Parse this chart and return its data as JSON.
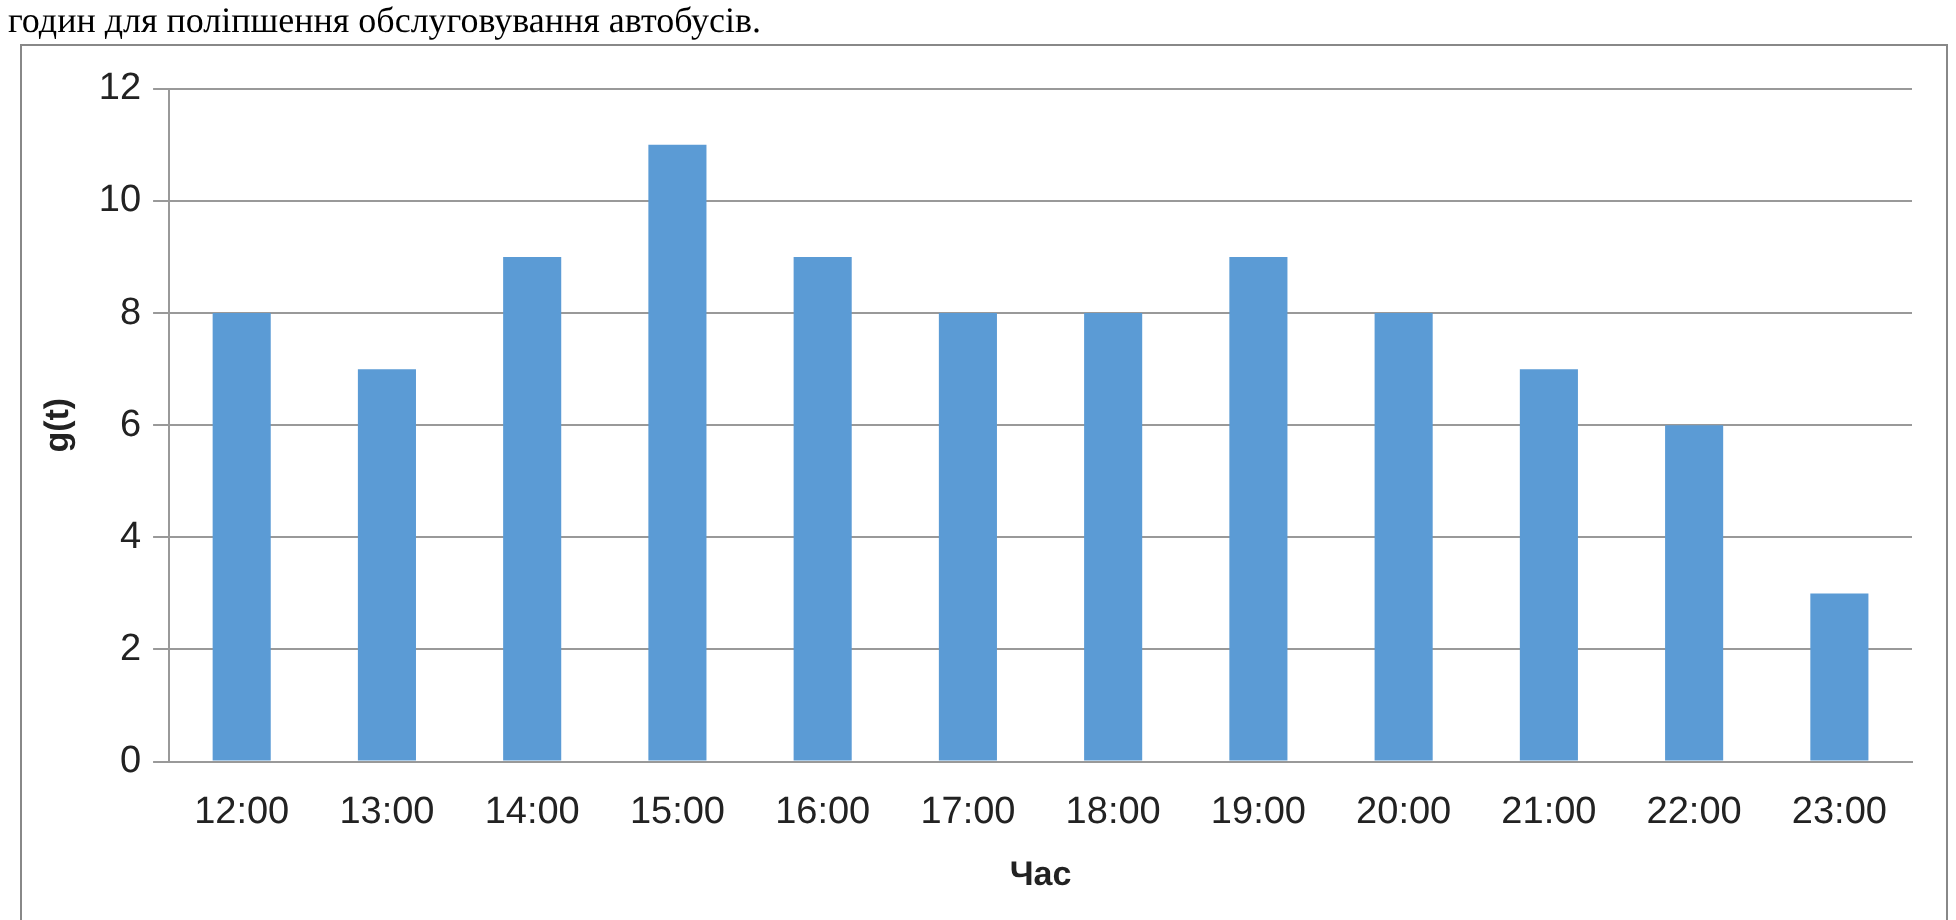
{
  "chart_data": {
    "type": "bar",
    "xlabel": "Час",
    "ylabel": "g(t)",
    "categories": [
      "12:00",
      "13:00",
      "14:00",
      "15:00",
      "16:00",
      "17:00",
      "18:00",
      "19:00",
      "20:00",
      "21:00",
      "22:00",
      "23:00"
    ],
    "values": [
      8,
      7,
      9,
      11,
      9,
      8,
      8,
      9,
      8,
      7,
      6,
      3
    ],
    "color": "#5b9bd5",
    "ylim": [
      0,
      12
    ],
    "yticks": [
      0,
      2,
      4,
      6,
      8,
      10,
      12
    ],
    "grid": "y",
    "annotations": [
      "годин для поліпшення обслуговування автобусів."
    ]
  }
}
